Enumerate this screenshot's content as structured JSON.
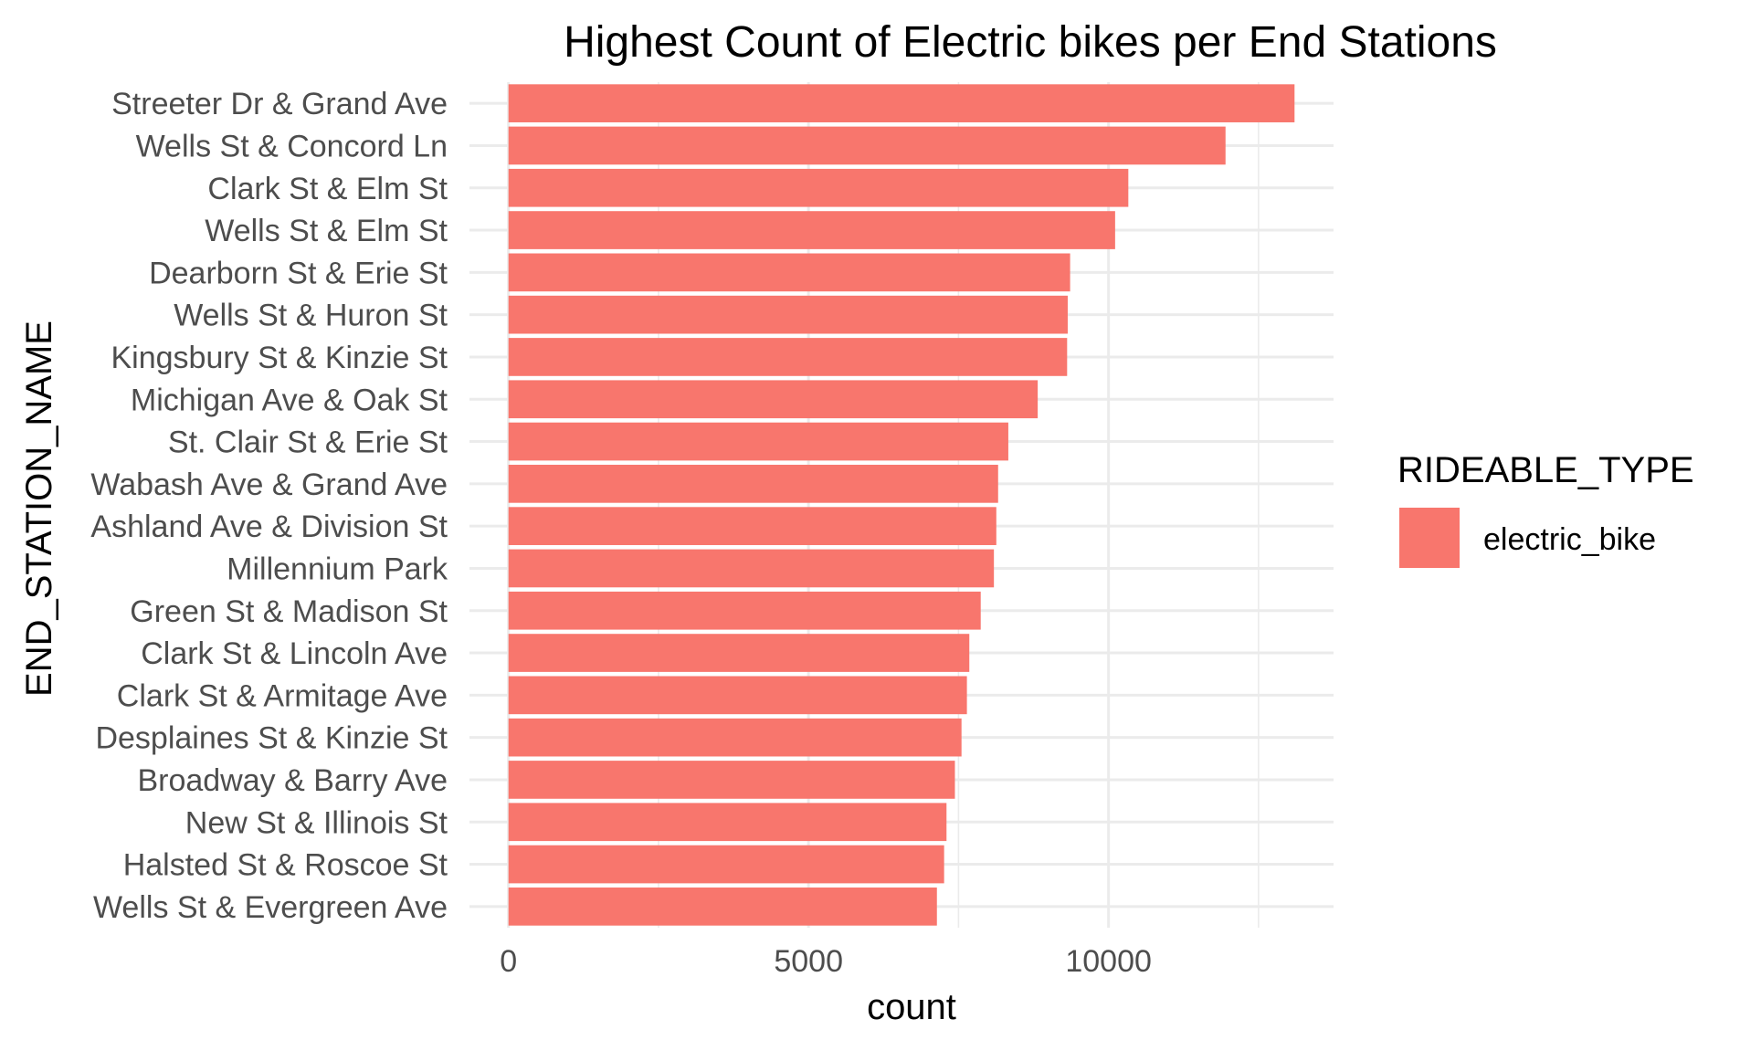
{
  "chart_data": {
    "type": "bar",
    "orientation": "horizontal",
    "title": "Highest Count of Electric bikes per End Stations",
    "xlabel": "count",
    "ylabel": "END_STATION_NAME",
    "categories": [
      "Streeter Dr & Grand Ave",
      "Wells St & Concord Ln",
      "Clark St & Elm St",
      "Wells St & Elm St",
      "Dearborn St & Erie St",
      "Wells St & Huron St",
      "Kingsbury St & Kinzie St",
      "Michigan Ave & Oak St",
      "St. Clair St & Erie St",
      "Wabash Ave & Grand Ave",
      "Ashland Ave & Division St",
      "Millennium Park",
      "Green St & Madison St",
      "Clark St & Lincoln Ave",
      "Clark St & Armitage Ave",
      "Desplaines St & Kinzie St",
      "Broadway & Barry Ave",
      "New St & Illinois St",
      "Halsted St & Roscoe St",
      "Wells St & Evergreen Ave"
    ],
    "series": [
      {
        "name": "electric_bike",
        "color": "#f8766d",
        "values": [
          13100,
          11950,
          10330,
          10110,
          9360,
          9320,
          9310,
          8820,
          8330,
          8160,
          8130,
          8090,
          7870,
          7680,
          7640,
          7550,
          7440,
          7300,
          7260,
          7140
        ]
      }
    ],
    "xticks": [
      0,
      5000,
      10000
    ],
    "xtick_labels": [
      "0",
      "5000",
      "10000"
    ],
    "xlim": [
      -650,
      13750
    ],
    "grid": true,
    "legend": {
      "title": "RIDEABLE_TYPE",
      "position": "right",
      "items": [
        "electric_bike"
      ]
    }
  }
}
